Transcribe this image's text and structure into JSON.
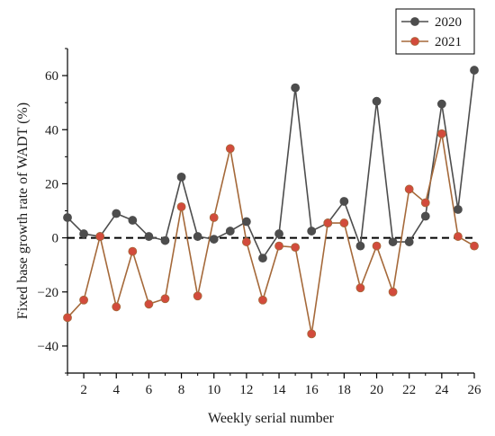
{
  "chart_data": {
    "type": "line",
    "title": "",
    "xlabel": "Weekly serial number",
    "ylabel": "Fixed base growth rate of WADT (%)",
    "x": [
      1,
      2,
      3,
      4,
      5,
      6,
      7,
      8,
      9,
      10,
      11,
      12,
      13,
      14,
      15,
      16,
      17,
      18,
      19,
      20,
      21,
      22,
      23,
      24,
      25,
      26
    ],
    "xticks": [
      2,
      4,
      6,
      8,
      10,
      12,
      14,
      16,
      18,
      20,
      22,
      24,
      26
    ],
    "yticks": [
      -40,
      -20,
      0,
      20,
      40,
      60
    ],
    "xlim": [
      1,
      26
    ],
    "ylim": [
      -50,
      70
    ],
    "reference_line": {
      "y": 0,
      "style": "dashed"
    },
    "legend_position": "top-right",
    "series": [
      {
        "name": "2020",
        "color": "#4d4d4d",
        "marker_color": "#4d4d4d",
        "values": [
          7.5,
          1.5,
          0.5,
          9,
          6.5,
          0.5,
          -1,
          22.5,
          0.5,
          -0.5,
          2.5,
          6,
          -7.5,
          1.5,
          55.5,
          2.5,
          5.5,
          13.5,
          -3,
          50.5,
          -1.5,
          -1.5,
          8,
          49.5,
          10.5,
          62
        ]
      },
      {
        "name": "2021",
        "color": "#a5693a",
        "marker_color": "#d24b3c",
        "values": [
          -29.5,
          -23,
          0.5,
          -25.5,
          -5,
          -24.5,
          -22.5,
          11.5,
          -21.5,
          7.5,
          33,
          -1.5,
          -23,
          -3,
          -3.5,
          -35.5,
          5.5,
          5.5,
          -18.5,
          -3,
          -20,
          18,
          13,
          38.5,
          0.5,
          -3
        ]
      }
    ]
  }
}
